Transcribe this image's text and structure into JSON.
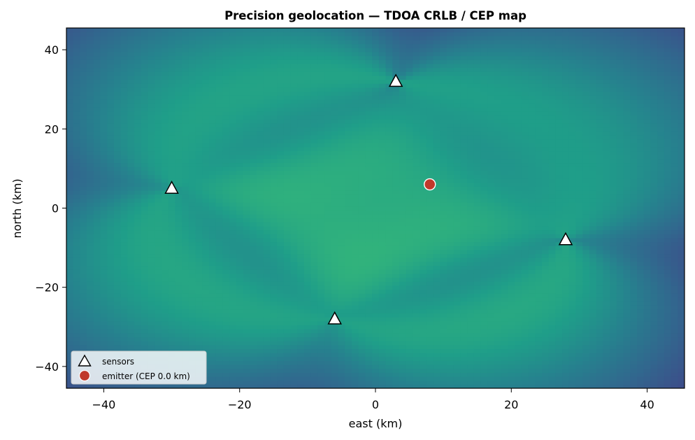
{
  "chart_data": {
    "type": "heatmap",
    "title": "Precision geolocation — TDOA CRLB / CEP map",
    "xlabel": "east (km)",
    "ylabel": "north (km)",
    "xlim": [
      -45.5,
      45.5
    ],
    "ylim": [
      -45.5,
      45.5
    ],
    "xticks": [
      -40,
      -20,
      0,
      20,
      40
    ],
    "yticks": [
      -40,
      -20,
      0,
      20,
      40
    ],
    "grid": false,
    "colormap": "viridis",
    "legend_position": "lower-left",
    "sensors": [
      {
        "x": 3,
        "y": 32
      },
      {
        "x": -30,
        "y": 5
      },
      {
        "x": 28,
        "y": -8
      },
      {
        "x": -6,
        "y": -28
      }
    ],
    "emitter": {
      "x": 8,
      "y": 6
    },
    "legend": [
      {
        "label": "sensors",
        "marker": "triangle"
      },
      {
        "label": "emitter (CEP 0.0 km)",
        "marker": "circle"
      }
    ],
    "colors": {
      "emitter": "#c0392b",
      "sensor_fill": "#ffffff",
      "sensor_edge": "#000000"
    }
  }
}
